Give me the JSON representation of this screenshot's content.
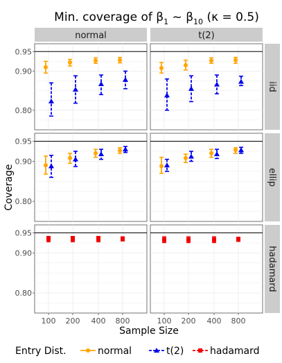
{
  "chart_data": {
    "type": "scatter",
    "title_main": "Min. coverage of ",
    "title_b": "β",
    "title_sub1": "1",
    "title_tilde": " ~ ",
    "title_sub2": "10",
    "title_tail": " (κ = 0.5)",
    "xlabel": "Sample Size",
    "ylabel": "Coverage",
    "x_ticks": [
      "100",
      "200",
      "400",
      "800"
    ],
    "y_ticks": [
      "0.80",
      "0.90",
      "0.95"
    ],
    "ylim": [
      0.75,
      0.97
    ],
    "reference_line": 0.95,
    "col_facets": [
      "normal",
      "t(2)"
    ],
    "row_facets": [
      "iid",
      "ellip",
      "hadamard"
    ],
    "legend": {
      "title": "Entry Dist.",
      "placement": "bottom",
      "items": [
        {
          "label": "normal",
          "color": "#ffa500",
          "shape": "circle"
        },
        {
          "label": "t(2)",
          "color": "#0000ee",
          "shape": "triangle"
        },
        {
          "label": "hadamard",
          "color": "#ee0000",
          "shape": "square"
        }
      ]
    },
    "panels": [
      {
        "row": "iid",
        "col": "normal",
        "series": [
          {
            "entry": "normal",
            "points": [
              {
                "x": "100",
                "y": 0.91,
                "lo": 0.895,
                "hi": 0.925
              },
              {
                "x": "200",
                "y": 0.922,
                "lo": 0.913,
                "hi": 0.93
              },
              {
                "x": "400",
                "y": 0.927,
                "lo": 0.92,
                "hi": 0.934
              },
              {
                "x": "800",
                "y": 0.928,
                "lo": 0.921,
                "hi": 0.935
              }
            ]
          },
          {
            "entry": "t(2)",
            "points": [
              {
                "x": "100",
                "y": 0.823,
                "lo": 0.785,
                "hi": 0.87
              },
              {
                "x": "200",
                "y": 0.853,
                "lo": 0.818,
                "hi": 0.888
              },
              {
                "x": "400",
                "y": 0.867,
                "lo": 0.84,
                "hi": 0.89
              },
              {
                "x": "800",
                "y": 0.878,
                "lo": 0.855,
                "hi": 0.9
              }
            ]
          }
        ]
      },
      {
        "row": "iid",
        "col": "t(2)",
        "series": [
          {
            "entry": "normal",
            "points": [
              {
                "x": "100",
                "y": 0.908,
                "lo": 0.895,
                "hi": 0.922
              },
              {
                "x": "200",
                "y": 0.915,
                "lo": 0.903,
                "hi": 0.928
              },
              {
                "x": "400",
                "y": 0.927,
                "lo": 0.92,
                "hi": 0.934
              },
              {
                "x": "800",
                "y": 0.928,
                "lo": 0.92,
                "hi": 0.935
              }
            ]
          },
          {
            "entry": "t(2)",
            "points": [
              {
                "x": "100",
                "y": 0.838,
                "lo": 0.8,
                "hi": 0.88
              },
              {
                "x": "200",
                "y": 0.855,
                "lo": 0.822,
                "hi": 0.888
              },
              {
                "x": "400",
                "y": 0.866,
                "lo": 0.842,
                "hi": 0.89
              },
              {
                "x": "800",
                "y": 0.873,
                "lo": 0.863,
                "hi": 0.887
              }
            ]
          }
        ]
      },
      {
        "row": "ellip",
        "col": "normal",
        "series": [
          {
            "entry": "normal",
            "points": [
              {
                "x": "100",
                "y": 0.89,
                "lo": 0.868,
                "hi": 0.913
              },
              {
                "x": "200",
                "y": 0.908,
                "lo": 0.895,
                "hi": 0.92
              },
              {
                "x": "400",
                "y": 0.92,
                "lo": 0.91,
                "hi": 0.93
              },
              {
                "x": "800",
                "y": 0.927,
                "lo": 0.92,
                "hi": 0.934
              }
            ]
          },
          {
            "entry": "t(2)",
            "points": [
              {
                "x": "100",
                "y": 0.888,
                "lo": 0.86,
                "hi": 0.915
              },
              {
                "x": "200",
                "y": 0.905,
                "lo": 0.887,
                "hi": 0.925
              },
              {
                "x": "400",
                "y": 0.918,
                "lo": 0.905,
                "hi": 0.93
              },
              {
                "x": "800",
                "y": 0.93,
                "lo": 0.922,
                "hi": 0.937
              }
            ]
          }
        ]
      },
      {
        "row": "ellip",
        "col": "t(2)",
        "series": [
          {
            "entry": "normal",
            "points": [
              {
                "x": "100",
                "y": 0.888,
                "lo": 0.87,
                "hi": 0.91
              },
              {
                "x": "200",
                "y": 0.908,
                "lo": 0.897,
                "hi": 0.918
              },
              {
                "x": "400",
                "y": 0.92,
                "lo": 0.91,
                "hi": 0.93
              },
              {
                "x": "800",
                "y": 0.928,
                "lo": 0.92,
                "hi": 0.934
              }
            ]
          },
          {
            "entry": "t(2)",
            "points": [
              {
                "x": "100",
                "y": 0.89,
                "lo": 0.875,
                "hi": 0.905
              },
              {
                "x": "200",
                "y": 0.912,
                "lo": 0.9,
                "hi": 0.925
              },
              {
                "x": "400",
                "y": 0.918,
                "lo": 0.907,
                "hi": 0.93
              },
              {
                "x": "800",
                "y": 0.928,
                "lo": 0.92,
                "hi": 0.935
              }
            ]
          }
        ]
      },
      {
        "row": "hadamard",
        "col": "normal",
        "series": [
          {
            "entry": "hadamard",
            "points": [
              {
                "x": "100",
                "y": 0.935,
                "lo": 0.928,
                "hi": 0.941
              },
              {
                "x": "200",
                "y": 0.935,
                "lo": 0.928,
                "hi": 0.941
              },
              {
                "x": "400",
                "y": 0.935,
                "lo": 0.928,
                "hi": 0.941
              },
              {
                "x": "800",
                "y": 0.935,
                "lo": 0.93,
                "hi": 0.94
              }
            ]
          }
        ]
      },
      {
        "row": "hadamard",
        "col": "t(2)",
        "series": [
          {
            "entry": "hadamard",
            "points": [
              {
                "x": "100",
                "y": 0.933,
                "lo": 0.926,
                "hi": 0.94
              },
              {
                "x": "200",
                "y": 0.933,
                "lo": 0.926,
                "hi": 0.94
              },
              {
                "x": "400",
                "y": 0.933,
                "lo": 0.926,
                "hi": 0.94
              },
              {
                "x": "800",
                "y": 0.934,
                "lo": 0.929,
                "hi": 0.939
              }
            ]
          }
        ]
      }
    ]
  }
}
